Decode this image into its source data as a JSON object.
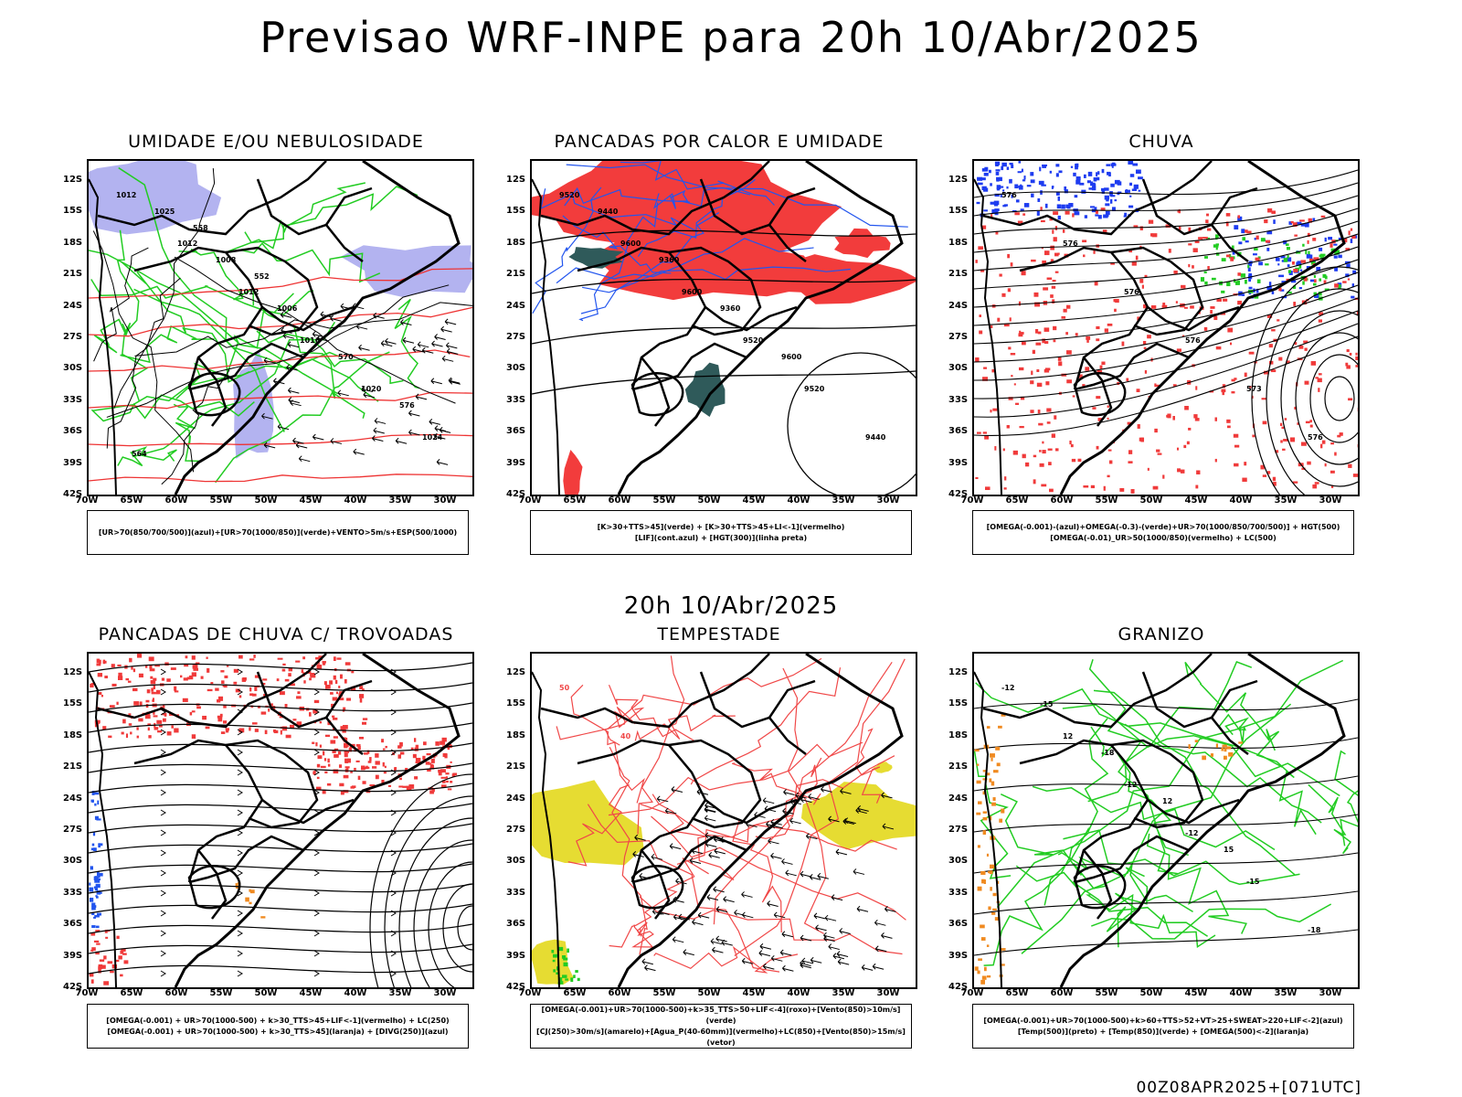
{
  "main_title": "Previsao WRF-INPE  para 20h 10/Abr/2025",
  "mid_title": "20h 10/Abr/2025",
  "footer": "00Z08APR2025+[071UTC]",
  "lat_labels": [
    "12S",
    "15S",
    "18S",
    "21S",
    "24S",
    "27S",
    "30S",
    "33S",
    "36S",
    "39S",
    "42S"
  ],
  "lon_labels": [
    "70W",
    "65W",
    "60W",
    "55W",
    "50W",
    "45W",
    "40W",
    "35W",
    "30W"
  ],
  "panels": [
    {
      "title": "UMIDADE E/OU NEBULOSIDADE",
      "legend": [
        "[UR>70(850/700/500)](azul)+[UR>70(1000/850)](verde)+VENTO>5m/s+ESP(500/1000)"
      ],
      "contour_labels": [
        "1012",
        "1012",
        "1012",
        "1016",
        "1020",
        "1024",
        "1025",
        "1008",
        "1006",
        "570",
        "576",
        "564",
        "558",
        "552"
      ],
      "colors": {
        "shade": "#b3b3f0",
        "green": "#22cc22",
        "red": "#ee3333"
      }
    },
    {
      "title": "PANCADAS POR CALOR E UMIDADE",
      "legend": [
        "[K>30+TTS>45](verde) + [K>30+TTS>45+LI<-1](vermelho)",
        "[LIF](cont.azul) + [HGT(300)](linha preta)"
      ],
      "contour_labels": [
        "9520",
        "9600",
        "9600",
        "9520",
        "9520",
        "9440",
        "9440",
        "9360",
        "9360",
        "9600"
      ],
      "colors": {
        "red": "#f23c3c",
        "dark": "#2f5a5a",
        "blue": "#2255ee"
      }
    },
    {
      "title": "CHUVA",
      "legend": [
        "[OMEGA(-0.001)-(azul)+OMEGA(-0.3)-(verde)+UR>70(1000/850/700/500)] + HGT(500)",
        "[OMEGA(-0.01)_UR>50(1000/850)(vermelho) + LC(500)"
      ],
      "contour_labels": [
        "576",
        "576",
        "576",
        "576",
        "573",
        "576"
      ],
      "colors": {
        "blue": "#1e3cf0",
        "green": "#22cc22",
        "red": "#f03a3a"
      }
    },
    {
      "title": "PANCADAS DE CHUVA C/ TROVOADAS",
      "legend": [
        "[OMEGA(-0.001) + UR>70(1000-500) + k>30_TTS>45+LIF<-1](vermelho) + LC(250)",
        "[OMEGA(-0.001) + UR>70(1000-500) + k>30_TTS>45](laranja) + [DIVG(250)](azul)"
      ],
      "contour_labels": [],
      "colors": {
        "red": "#f03a3a",
        "blue": "#2255ee",
        "orange": "#f08a20"
      }
    },
    {
      "title": "TEMPESTADE",
      "legend": [
        "[OMEGA(-0.001)+UR>70(1000-500)+k>35_TTS>50+LIF<-4](roxo)+[Vento(850)>10m/s](verde)",
        "[CJ(250)>30m/s](amarelo)+[Agua_P(40-60mm)](vermelho)+LC(850)+[Vento(850)>15m/s](vetor)"
      ],
      "contour_labels": [
        "50",
        "40"
      ],
      "colors": {
        "yellow": "#e6dc32",
        "red": "#f04848",
        "green": "#22cc22"
      }
    },
    {
      "title": "GRANIZO",
      "legend": [
        "[OMEGA(-0.001)+UR>70(1000-500)+k>60+TTS>52+VT>25+SWEAT>220+LIF<-2](azul)",
        "[Temp(500)](preto) + [Temp(850)](verde) + [OMEGA(500)<-2](laranja)"
      ],
      "contour_labels": [
        "-12",
        "12",
        "-12",
        "-12",
        "-15",
        "-18",
        "-15",
        "-18",
        "12",
        "15"
      ],
      "colors": {
        "green": "#22cc22",
        "orange": "#f08a20",
        "black": "#000000"
      }
    }
  ]
}
